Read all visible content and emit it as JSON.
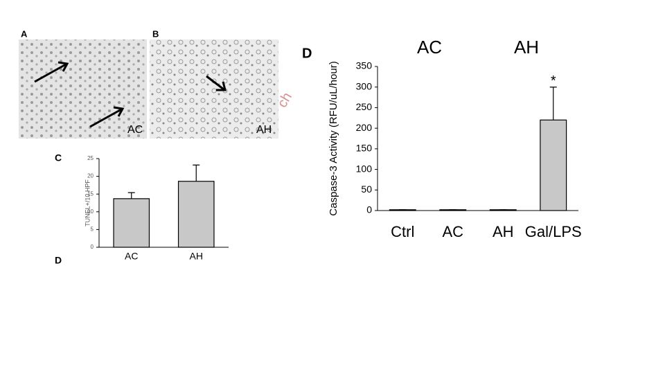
{
  "panels": {
    "a_label": "A",
    "a_caption": "AC",
    "b_label": "B",
    "b_caption": "AH",
    "c_label": "C",
    "d_label": "D",
    "d_small_label": "D",
    "watermark": "ch"
  },
  "chart_data": [
    {
      "type": "bar",
      "ylabel": "TUNEL+/10 HPF",
      "categories": [
        "AC",
        "AH"
      ],
      "values": [
        13.7,
        18.6
      ],
      "errors": [
        1.7,
        4.6
      ],
      "color": "#c8c8c8",
      "ylim": [
        0,
        25
      ],
      "yticks": [
        0,
        5,
        10,
        15,
        20,
        25
      ]
    },
    {
      "type": "bar",
      "ylabel": "Caspase-3 Activity (RFU/uL/hour)",
      "group_labels": [
        "AC",
        "AH"
      ],
      "categories": [
        "Ctrl",
        "AC",
        "AH",
        "Gal/LPS"
      ],
      "values": [
        2,
        2,
        2,
        220
      ],
      "errors": [
        0,
        0,
        0,
        80
      ],
      "annotation": "*",
      "color": "#c8c8c8",
      "ylim": [
        0,
        350
      ],
      "yticks": [
        0,
        50,
        100,
        150,
        200,
        250,
        300,
        350
      ]
    }
  ]
}
